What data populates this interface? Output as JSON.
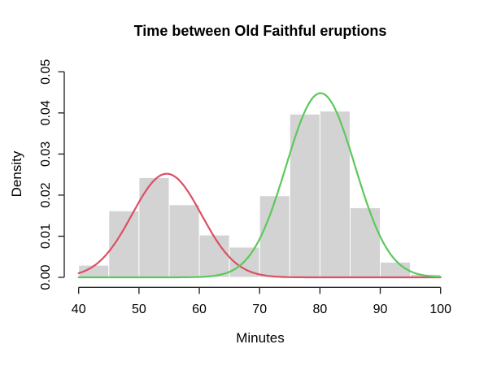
{
  "chart_data": {
    "type": "histogram",
    "title": "Time between Old Faithful eruptions",
    "xlabel": "Minutes",
    "ylabel": "Density",
    "xlim": [
      40,
      100
    ],
    "ylim": [
      0,
      0.05
    ],
    "x_ticks": [
      40,
      50,
      60,
      70,
      80,
      90,
      100
    ],
    "x_tick_labels": [
      "40",
      "50",
      "60",
      "70",
      "80",
      "90",
      "100"
    ],
    "y_ticks": [
      0,
      0.01,
      0.02,
      0.03,
      0.04,
      0.05
    ],
    "y_tick_labels": [
      "0.00",
      "0.01",
      "0.02",
      "0.03",
      "0.04",
      "0.05"
    ],
    "grid": false,
    "histogram": {
      "bin_start": 40,
      "bin_width": 5,
      "bin_edges": [
        40,
        45,
        50,
        55,
        60,
        65,
        70,
        75,
        80,
        85,
        90,
        95,
        100
      ],
      "densities": [
        0.00294,
        0.01618,
        0.02426,
        0.01765,
        0.01029,
        0.00735,
        0.01985,
        0.03971,
        0.04044,
        0.01691,
        0.00368,
        0.00074
      ],
      "fill": "#d3d3d3",
      "border": "#ffffff"
    },
    "curves": [
      {
        "name": "mixture-component-red",
        "type": "gaussian",
        "mean": 54.6,
        "sd": 5.75,
        "peak_density": 0.0252,
        "color": "#db5064"
      },
      {
        "name": "mixture-component-green",
        "type": "gaussian",
        "mean": 80.1,
        "sd": 5.7,
        "peak_density": 0.0448,
        "color": "#5cc85c"
      }
    ],
    "axis_color": "#2a2a2a",
    "text_color": "#000000",
    "background": "#ffffff"
  }
}
